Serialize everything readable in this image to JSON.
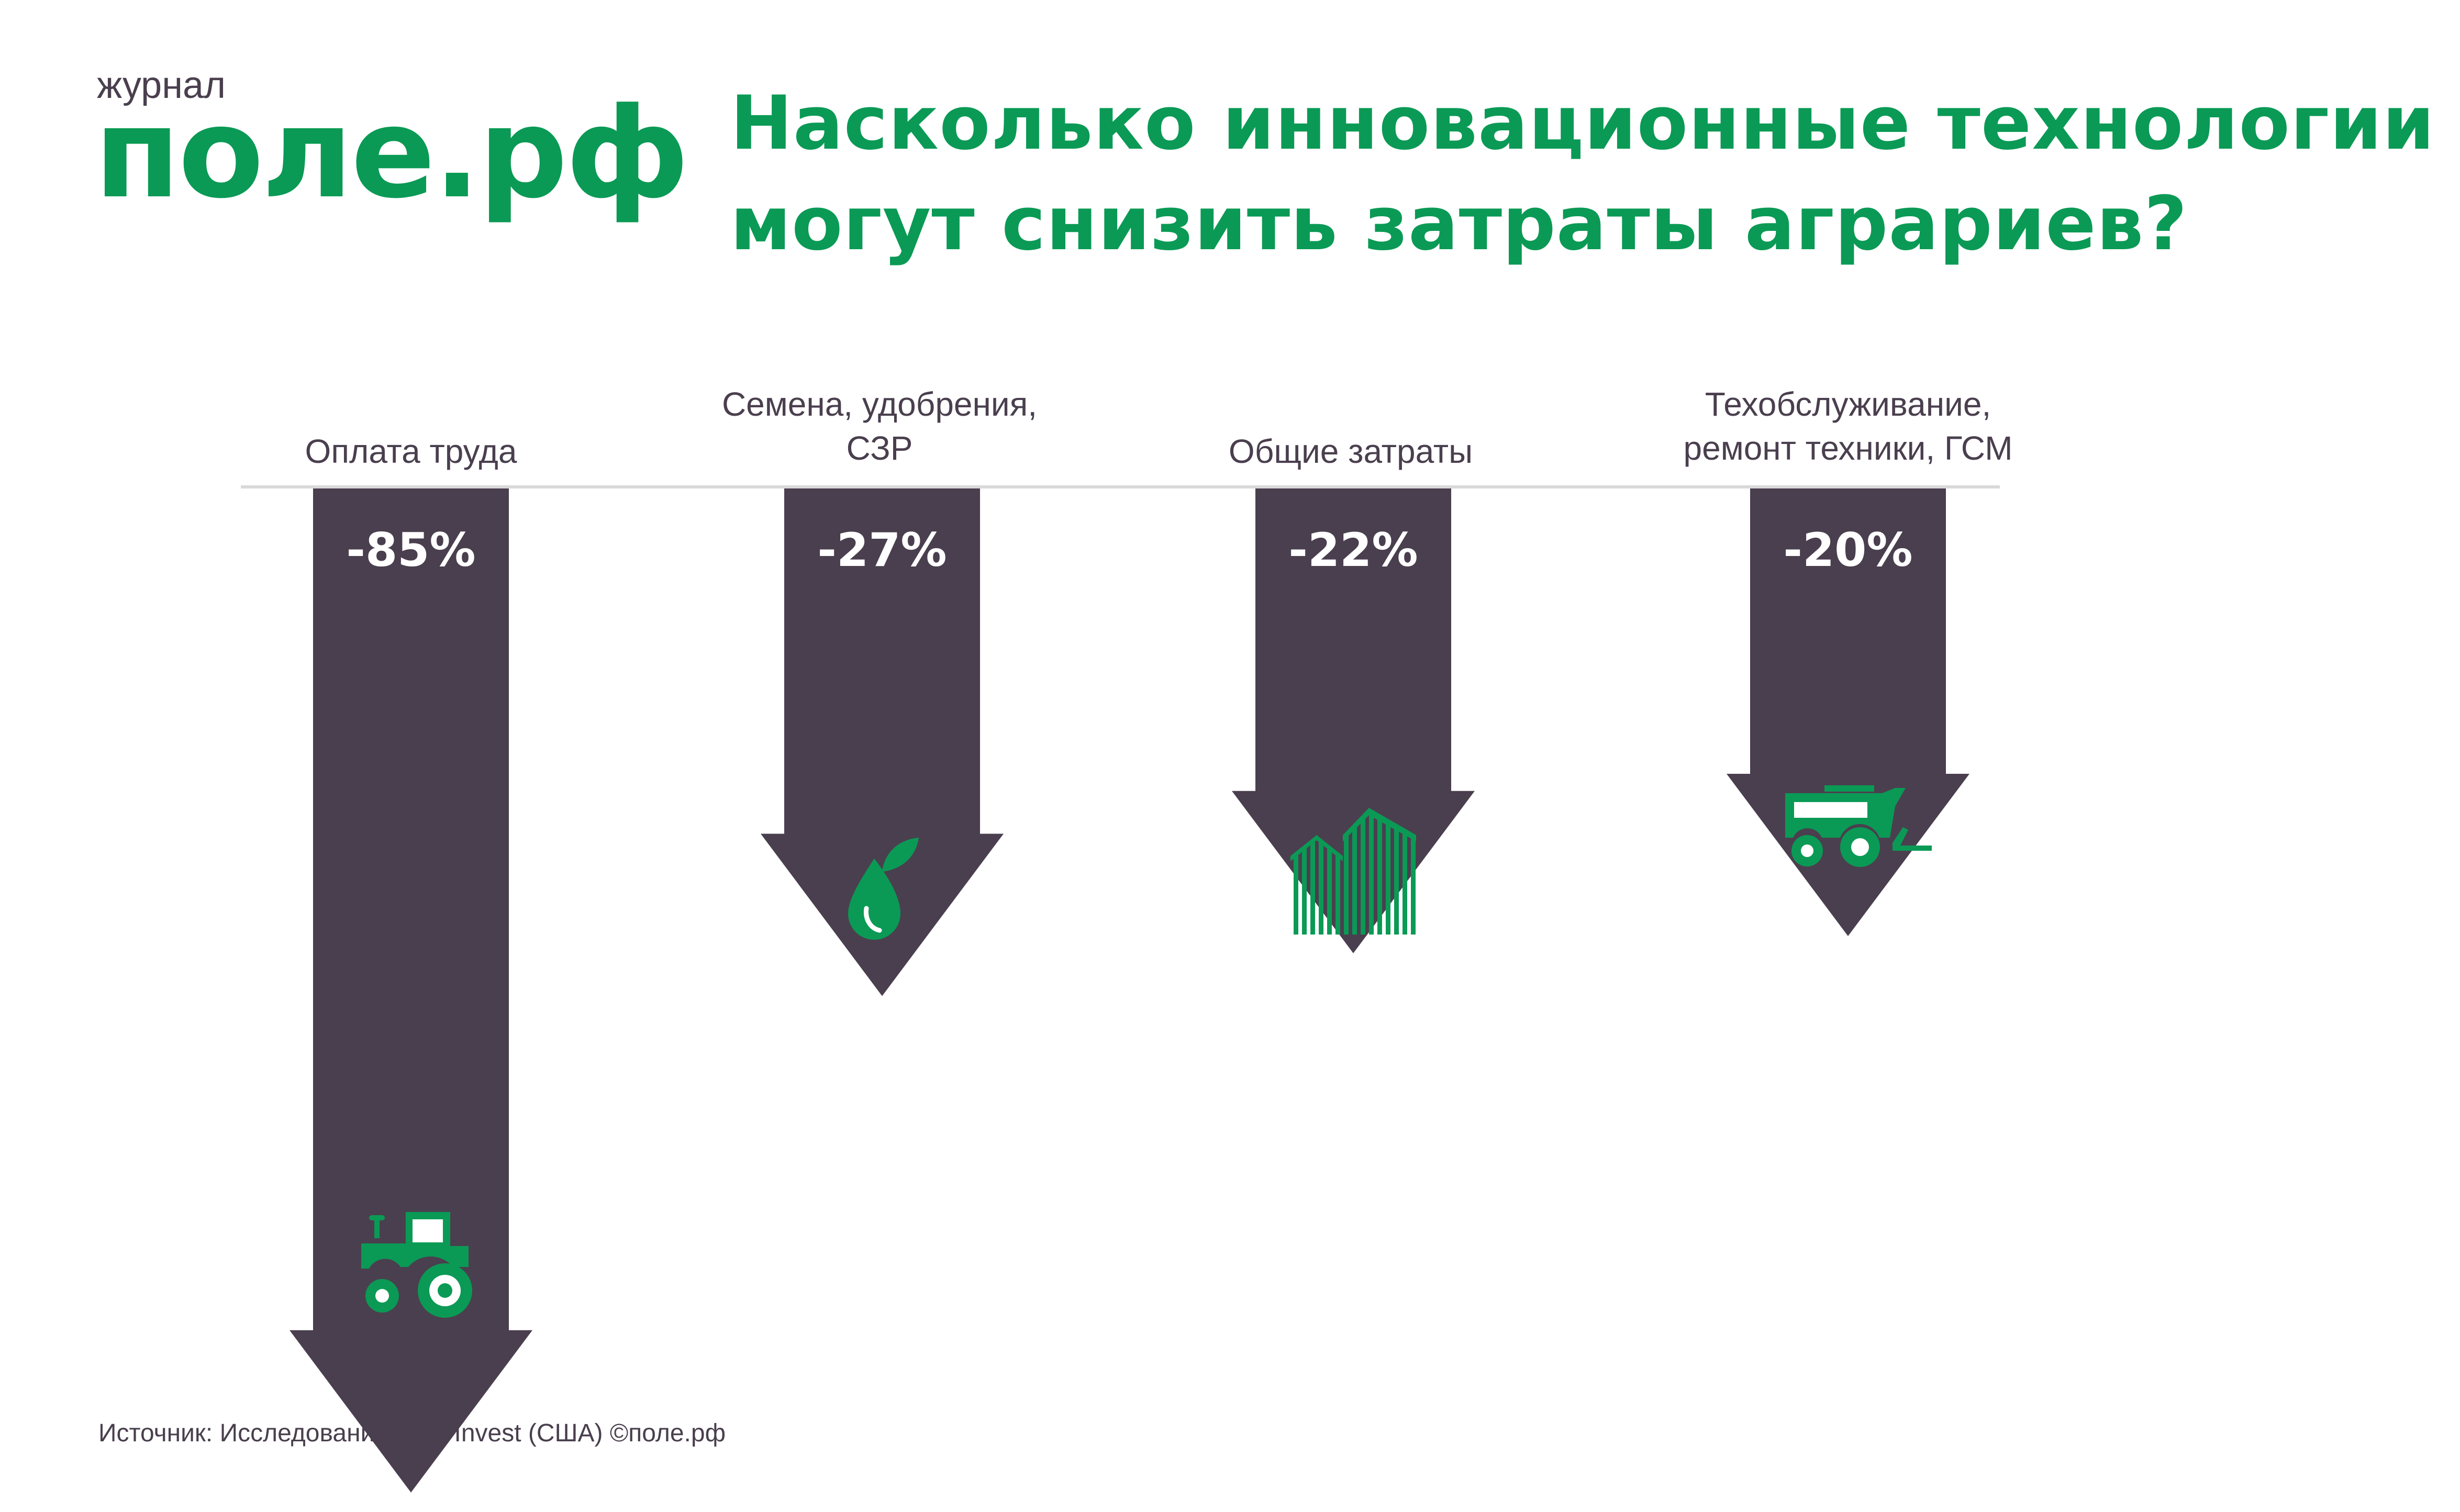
{
  "brand": {
    "small": "журнал",
    "name": "поле.рф",
    "color": "#0a9a55"
  },
  "title": {
    "line1": "Насколько инновационные технологии",
    "line2": "могут снизить затраты аграриев?"
  },
  "source": "Источник: Исследование ARK Invest (США) ©поле.рф",
  "colors": {
    "arrow": "#4a3f4e",
    "accent": "#0a9a55",
    "baseline": "#d9d9d9"
  },
  "chart_data": {
    "type": "bar",
    "orientation": "downward-arrows",
    "categories": [
      "Оплата труда",
      "Семена, удобрения, СЗР",
      "Общие затраты",
      "Техобслуживание, ремонт техники, ГСМ"
    ],
    "category_lines": [
      [
        "Оплата труда"
      ],
      [
        "Семена, удобрения,",
        "СЗР"
      ],
      [
        "Общие затраты"
      ],
      [
        "Техобслуживание,",
        "ремонт техники, ГСМ"
      ]
    ],
    "values": [
      -85,
      -27,
      -22,
      -20
    ],
    "value_labels": [
      "-85%",
      "-27%",
      "-22%",
      "-20%"
    ],
    "icons": [
      "tractor-icon",
      "seed-drop-icon",
      "farm-building-icon",
      "combine-harvester-icon"
    ]
  }
}
